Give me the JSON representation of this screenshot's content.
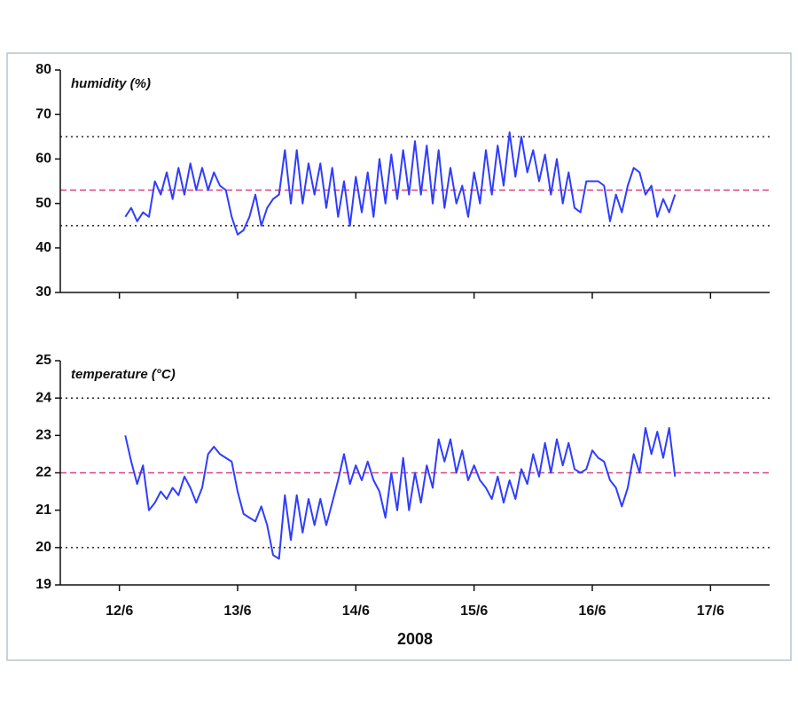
{
  "chart_data": [
    {
      "type": "line",
      "ylabel": "humidity (%)",
      "x": [
        12.05,
        12.1,
        12.15,
        12.2,
        12.25,
        12.3,
        12.35,
        12.4,
        12.45,
        12.5,
        12.55,
        12.6,
        12.65,
        12.7,
        12.75,
        12.8,
        12.85,
        12.9,
        12.95,
        13,
        13.05,
        13.1,
        13.15,
        13.2,
        13.25,
        13.3,
        13.35,
        13.4,
        13.45,
        13.5,
        13.55,
        13.6,
        13.65,
        13.7,
        13.75,
        13.8,
        13.85,
        13.9,
        13.95,
        14,
        14.05,
        14.1,
        14.15,
        14.2,
        14.25,
        14.3,
        14.35,
        14.4,
        14.45,
        14.5,
        14.55,
        14.6,
        14.65,
        14.7,
        14.75,
        14.8,
        14.85,
        14.9,
        14.95,
        15,
        15.05,
        15.1,
        15.15,
        15.2,
        15.25,
        15.3,
        15.35,
        15.4,
        15.45,
        15.5,
        15.55,
        15.6,
        15.65,
        15.7,
        15.75,
        15.8,
        15.85,
        15.9,
        15.95,
        16,
        16.05,
        16.1,
        16.15,
        16.2,
        16.25,
        16.3,
        16.35,
        16.4,
        16.45,
        16.5,
        16.55,
        16.6,
        16.65,
        16.7
      ],
      "series": [
        {
          "color": "#2f3dff",
          "values": [
            47,
            49,
            46,
            48,
            47,
            55,
            52,
            57,
            51,
            58,
            52,
            59,
            53,
            58,
            53,
            57,
            54,
            53,
            47,
            43,
            44,
            47,
            52,
            45,
            49,
            51,
            52,
            62,
            50,
            62,
            50,
            59,
            52,
            59,
            49,
            58,
            47,
            55,
            45,
            56,
            48,
            57,
            47,
            60,
            50,
            61,
            51,
            62,
            52,
            64,
            52,
            63,
            50,
            62,
            49,
            58,
            50,
            54,
            47,
            57,
            50,
            62,
            52,
            63,
            54,
            66,
            56,
            65,
            57,
            62,
            55,
            61,
            52,
            60,
            50,
            57,
            49,
            48,
            55,
            55,
            55,
            54,
            46,
            52,
            48,
            54,
            58,
            57,
            52,
            54,
            47,
            51,
            48,
            52
          ]
        }
      ],
      "xlim": [
        11.5,
        17.5
      ],
      "ylim": [
        30,
        80
      ],
      "yticks": [
        30,
        40,
        50,
        60,
        70,
        80
      ],
      "hlines": [
        {
          "value": 65,
          "color": "#333333",
          "dash": "dotted"
        },
        {
          "value": 53,
          "color": "#d9407f",
          "dash": "dashed"
        },
        {
          "value": 45,
          "color": "#333333",
          "dash": "dotted"
        }
      ]
    },
    {
      "type": "line",
      "ylabel": "temperature (°C)",
      "xlabel": "2008",
      "x": [
        12.05,
        12.1,
        12.15,
        12.2,
        12.25,
        12.3,
        12.35,
        12.4,
        12.45,
        12.5,
        12.55,
        12.6,
        12.65,
        12.7,
        12.75,
        12.8,
        12.85,
        12.9,
        12.95,
        13,
        13.05,
        13.1,
        13.15,
        13.2,
        13.25,
        13.3,
        13.35,
        13.4,
        13.45,
        13.5,
        13.55,
        13.6,
        13.65,
        13.7,
        13.75,
        13.8,
        13.85,
        13.9,
        13.95,
        14,
        14.05,
        14.1,
        14.15,
        14.2,
        14.25,
        14.3,
        14.35,
        14.4,
        14.45,
        14.5,
        14.55,
        14.6,
        14.65,
        14.7,
        14.75,
        14.8,
        14.85,
        14.9,
        14.95,
        15,
        15.05,
        15.1,
        15.15,
        15.2,
        15.25,
        15.3,
        15.35,
        15.4,
        15.45,
        15.5,
        15.55,
        15.6,
        15.65,
        15.7,
        15.75,
        15.8,
        15.85,
        15.9,
        15.95,
        16,
        16.05,
        16.1,
        16.15,
        16.2,
        16.25,
        16.3,
        16.35,
        16.4,
        16.45,
        16.5,
        16.55,
        16.6,
        16.65,
        16.7
      ],
      "series": [
        {
          "color": "#2f3dff",
          "values": [
            23.0,
            22.3,
            21.7,
            22.2,
            21.0,
            21.2,
            21.5,
            21.3,
            21.6,
            21.4,
            21.9,
            21.6,
            21.2,
            21.6,
            22.5,
            22.7,
            22.5,
            22.4,
            22.3,
            21.5,
            20.9,
            20.8,
            20.7,
            21.1,
            20.6,
            19.8,
            19.7,
            21.4,
            20.2,
            21.4,
            20.4,
            21.3,
            20.6,
            21.3,
            20.6,
            21.2,
            21.8,
            22.5,
            21.7,
            22.2,
            21.8,
            22.3,
            21.8,
            21.5,
            20.8,
            22.0,
            21.0,
            22.4,
            21.0,
            22.0,
            21.2,
            22.2,
            21.6,
            22.9,
            22.3,
            22.9,
            22.0,
            22.6,
            21.8,
            22.2,
            21.8,
            21.6,
            21.3,
            21.9,
            21.2,
            21.8,
            21.3,
            22.1,
            21.7,
            22.5,
            21.9,
            22.8,
            22.0,
            22.9,
            22.2,
            22.8,
            22.1,
            22.0,
            22.1,
            22.6,
            22.4,
            22.3,
            21.8,
            21.6,
            21.1,
            21.6,
            22.5,
            22.0,
            23.2,
            22.5,
            23.1,
            22.4,
            23.2,
            21.9
          ]
        }
      ],
      "xlim": [
        11.5,
        17.5
      ],
      "ylim": [
        19,
        25
      ],
      "yticks": [
        19,
        20,
        21,
        22,
        23,
        24,
        25
      ],
      "xticks": [
        {
          "value": 12,
          "label": "12/6"
        },
        {
          "value": 13,
          "label": "13/6"
        },
        {
          "value": 14,
          "label": "14/6"
        },
        {
          "value": 15,
          "label": "15/6"
        },
        {
          "value": 16,
          "label": "16/6"
        },
        {
          "value": 17,
          "label": "17/6"
        }
      ],
      "hlines": [
        {
          "value": 24,
          "color": "#333333",
          "dash": "dotted"
        },
        {
          "value": 22,
          "color": "#d9407f",
          "dash": "dashed"
        },
        {
          "value": 20,
          "color": "#333333",
          "dash": "dotted"
        }
      ]
    }
  ]
}
